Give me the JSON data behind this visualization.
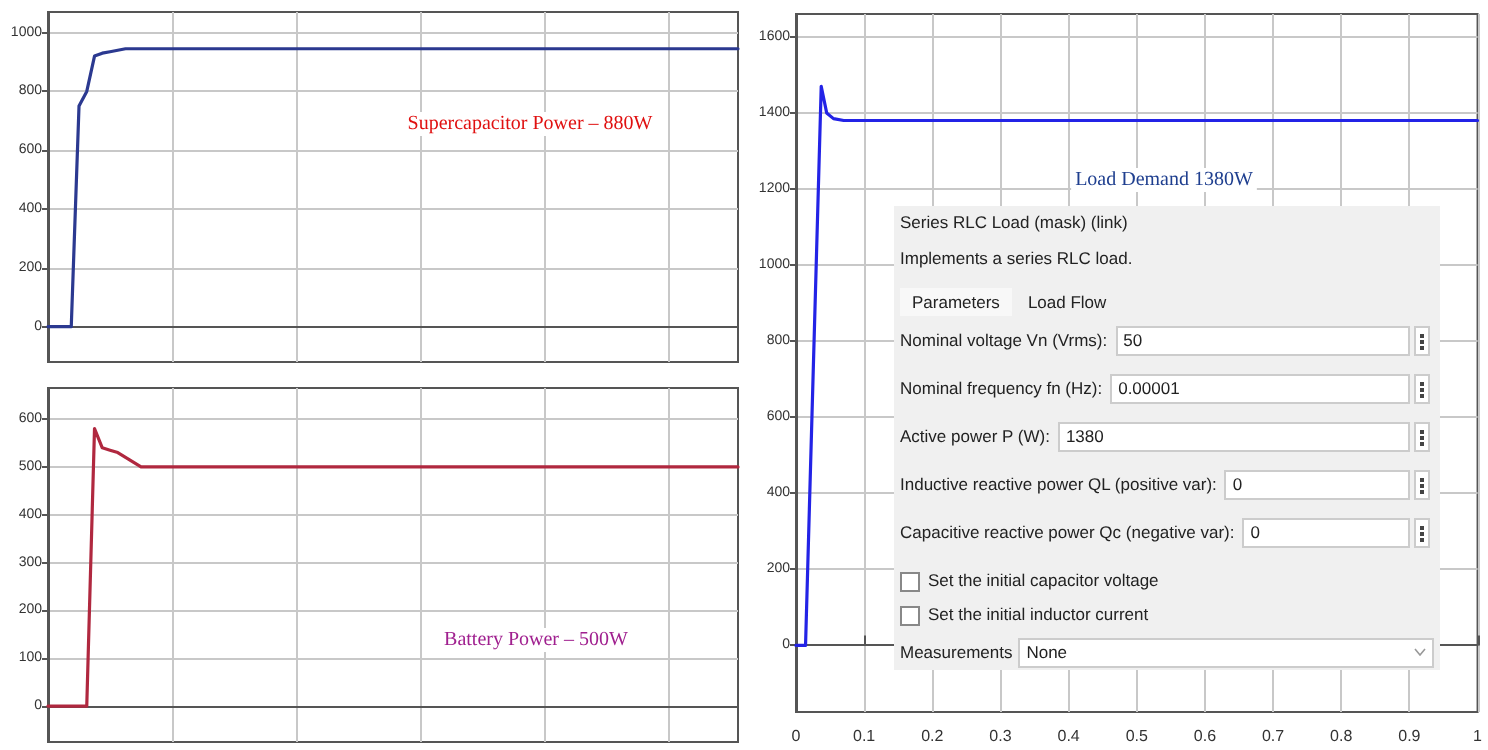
{
  "chart_data": [
    {
      "type": "line",
      "categories": [
        null,
        null,
        null,
        null,
        null,
        null,
        null,
        null,
        null,
        null,
        null,
        null,
        null,
        null,
        null,
        null,
        null,
        null,
        null,
        null,
        null,
        null,
        null,
        null,
        null,
        null,
        null,
        null,
        null,
        null,
        null,
        null,
        null,
        null,
        null,
        null,
        null,
        null,
        null,
        null,
        null,
        null,
        null,
        null,
        null,
        null,
        null,
        null,
        null,
        null,
        null,
        null,
        null,
        null,
        null,
        null,
        null,
        null,
        null,
        null,
        null,
        null,
        null,
        null,
        null,
        null,
        null,
        null,
        null,
        null,
        null,
        null,
        null,
        null,
        null,
        null,
        null,
        null,
        null,
        null,
        null,
        null,
        null,
        null,
        null,
        null,
        null,
        null,
        null,
        null
      ],
      "series": [
        {
          "color": "#2b3990",
          "values": [
            0,
            0,
            0,
            0,
            750,
            800,
            920,
            930,
            935,
            940,
            945,
            945,
            945,
            945,
            945,
            945,
            945,
            945,
            945,
            945,
            945,
            945,
            945,
            945,
            945,
            945,
            945,
            945,
            945,
            945,
            945,
            945,
            945,
            945,
            945,
            945,
            945,
            945,
            945,
            945,
            945,
            945,
            945,
            945,
            945,
            945,
            945,
            945,
            945,
            945,
            945,
            945,
            945,
            945,
            945,
            945,
            945,
            945,
            945,
            945,
            945,
            945,
            945,
            945,
            945,
            945,
            945,
            945,
            945,
            945,
            945,
            945,
            945,
            945,
            945,
            945,
            945,
            945,
            945,
            945,
            945,
            945,
            945,
            945,
            945,
            945,
            945,
            945,
            945,
            945
          ]
        }
      ],
      "ylim": [
        -120,
        1070
      ],
      "yticks": [
        0,
        200,
        400,
        600,
        800,
        1000
      ],
      "grid": true,
      "tick_labels": "y",
      "marker": "none",
      "annotations": [
        "Supercapacitor Power – 880W"
      ]
    },
    {
      "type": "line",
      "categories": [
        null,
        null,
        null,
        null,
        null,
        null,
        null,
        null,
        null,
        null,
        null,
        null,
        null,
        null,
        null,
        null,
        null,
        null,
        null,
        null,
        null,
        null,
        null,
        null,
        null,
        null,
        null,
        null,
        null,
        null,
        null,
        null,
        null,
        null,
        null,
        null,
        null,
        null,
        null,
        null,
        null,
        null,
        null,
        null,
        null,
        null,
        null,
        null,
        null,
        null,
        null,
        null,
        null,
        null,
        null,
        null,
        null,
        null,
        null,
        null,
        null,
        null,
        null,
        null,
        null,
        null,
        null,
        null,
        null,
        null,
        null,
        null,
        null,
        null,
        null,
        null,
        null,
        null,
        null,
        null,
        null,
        null,
        null,
        null,
        null,
        null,
        null,
        null,
        null,
        null
      ],
      "series": [
        {
          "color": "#b0283f",
          "values": [
            0,
            0,
            0,
            0,
            0,
            0,
            580,
            540,
            535,
            530,
            520,
            510,
            500,
            500,
            500,
            500,
            500,
            500,
            500,
            500,
            500,
            500,
            500,
            500,
            500,
            500,
            500,
            500,
            500,
            500,
            500,
            500,
            500,
            500,
            500,
            500,
            500,
            500,
            500,
            500,
            500,
            500,
            500,
            500,
            500,
            500,
            500,
            500,
            500,
            500,
            500,
            500,
            500,
            500,
            500,
            500,
            500,
            500,
            500,
            500,
            500,
            500,
            500,
            500,
            500,
            500,
            500,
            500,
            500,
            500,
            500,
            500,
            500,
            500,
            500,
            500,
            500,
            500,
            500,
            500,
            500,
            500,
            500,
            500,
            500,
            500,
            500,
            500,
            500,
            500
          ]
        }
      ],
      "ylim": [
        -75,
        665
      ],
      "yticks": [
        0,
        100,
        200,
        300,
        400,
        500,
        600
      ],
      "grid": true,
      "tick_labels": "y",
      "marker": "none",
      "annotations": [
        "Battery Power – 500W"
      ]
    },
    {
      "type": "line",
      "x": [
        0,
        0.014,
        0.037,
        0.045,
        0.055,
        0.07,
        1
      ],
      "series": [
        {
          "color": "#2323e6",
          "values": [
            0,
            0,
            1470,
            1400,
            1385,
            1380,
            1380
          ]
        }
      ],
      "xlim": [
        0,
        1
      ],
      "xticks": [
        0,
        0.1,
        0.2,
        0.3,
        0.4,
        0.5,
        0.6,
        0.7,
        0.8,
        0.9,
        1
      ],
      "ylim": [
        -175,
        1660
      ],
      "yticks": [
        0,
        200,
        400,
        600,
        800,
        1000,
        1200,
        1400,
        1600
      ],
      "grid": true,
      "marker": "none",
      "annotations": [
        "Load Demand 1380W",
        "Series RLC Load (mask) (link)",
        "Implements a series RLC load.",
        "Parameters",
        "Load Flow",
        "Nominal voltage Vn (Vrms):",
        "50",
        "Nominal frequency fn (Hz):",
        "0.00001",
        "Active power P (W):",
        "1380",
        "Inductive reactive power QL (positive var):",
        "0",
        "Capacitive reactive power Qc (negative var):",
        "0",
        "Set the initial capacitor voltage",
        "Set the initial inductor current",
        "Measurements",
        "None"
      ]
    }
  ]
}
